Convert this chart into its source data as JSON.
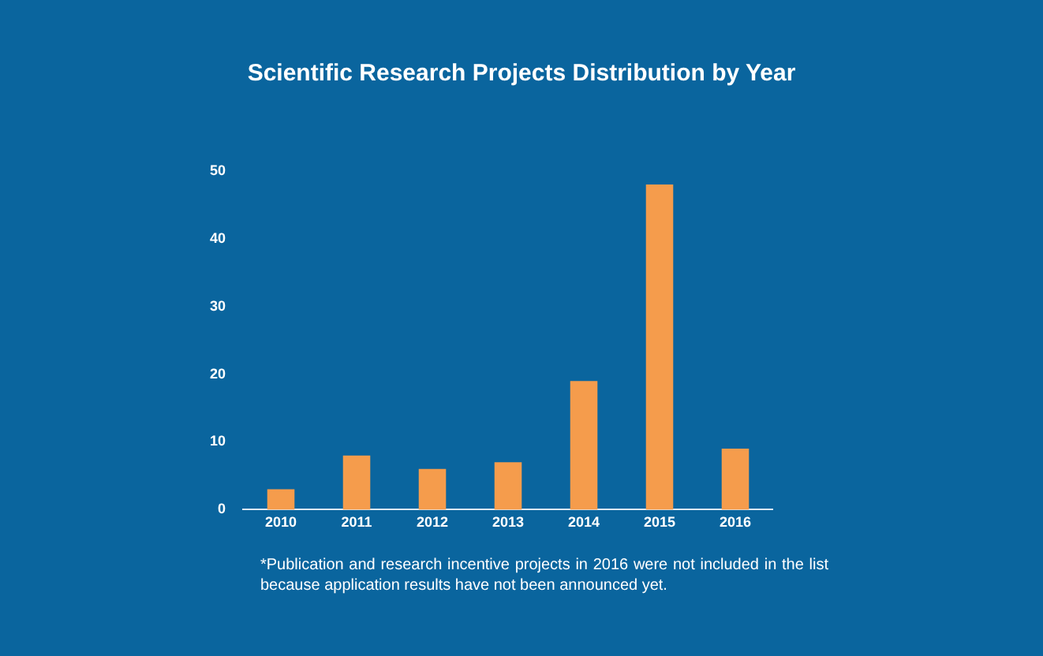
{
  "chart_data": {
    "type": "bar",
    "title": "Scientific Research Projects Distribution by Year",
    "categories": [
      "2010",
      "2011",
      "2012",
      "2013",
      "2014",
      "2015",
      "2016"
    ],
    "values": [
      3,
      8,
      6,
      7,
      19,
      48,
      9
    ],
    "color": "#f59c4c",
    "ylim": [
      0,
      50
    ],
    "yticks": [
      0,
      10,
      20,
      30,
      40,
      50
    ],
    "grid": false,
    "annotations": [
      "*Publication and research incentive projects in 2016 were not included in the list because application results have not been announced yet."
    ]
  }
}
